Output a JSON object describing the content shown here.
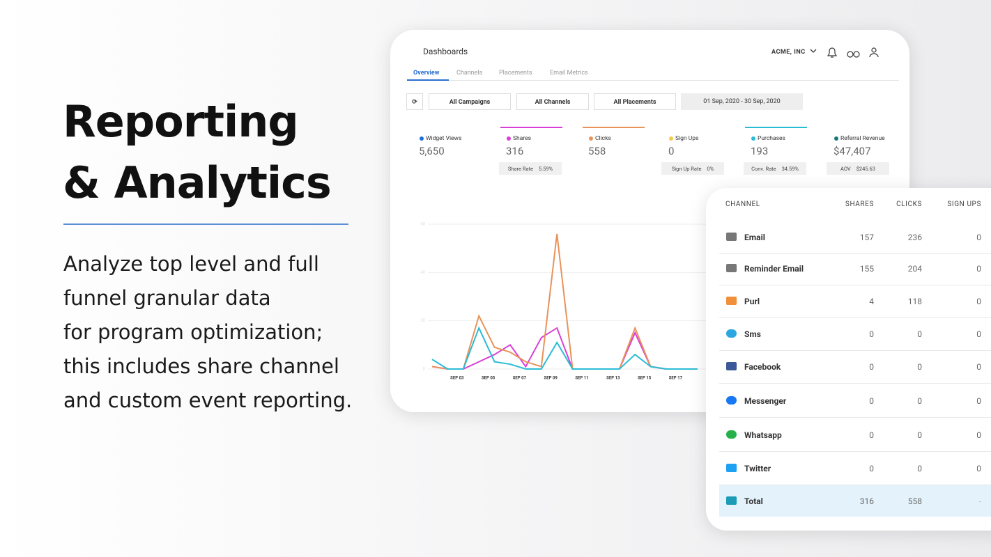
{
  "headline": {
    "line1": "Reporting",
    "line2": "& Analytics"
  },
  "description": [
    "Analyze top level and full",
    "funnel granular data",
    "for program optimization;",
    "this includes share channel",
    "and custom event reporting."
  ],
  "dashboard": {
    "title": "Dashboards",
    "account": "ACME, INC",
    "tabs": [
      "Overview",
      "Channels",
      "Placements",
      "Email Metrics"
    ],
    "filters": [
      "All Campaigns",
      "All Channels",
      "All Placements",
      "01 Sep, 2020 - 30 Sep, 2020"
    ],
    "metrics": [
      {
        "label": "Widget Views",
        "value": "5,650",
        "color": "#1f6fd6"
      },
      {
        "value": "316",
        "sub": {
          "label": "Share Rate",
          "value": "5.59%"
        }
      },
      {
        "value": "558"
      },
      {
        "label": "Sign Ups",
        "value": "0",
        "color": "#f2c94c",
        "sub": {
          "label": "Sign Up Rate",
          "value": "0%"
        }
      },
      {
        "value": "193",
        "sub": {
          "label": "Conv. Rate",
          "value": "34.59%"
        }
      },
      {
        "label": "Referral Revenue",
        "value": "$47,407",
        "color": "#17777a",
        "sub": {
          "label": "AOV",
          "value": "$245.63"
        }
      }
    ]
  },
  "chart_data": {
    "type": "line",
    "categories": [
      null,
      null,
      "SEP 03",
      null,
      "SEP 05",
      null,
      "SEP 07",
      null,
      "SEP 09",
      null,
      "SEP 11",
      null,
      "SEP 13",
      null,
      "SEP 15",
      null,
      "SEP 17",
      null
    ],
    "series": [
      {
        "name": "Shares",
        "color": "#d93fd6",
        "values": [
          1,
          0,
          0,
          3,
          6,
          10,
          1,
          13,
          17,
          0,
          0,
          0,
          0,
          15,
          1,
          0,
          0,
          0
        ]
      },
      {
        "name": "Clicks",
        "color": "#e8935a",
        "values": [
          1,
          0,
          0,
          22,
          9,
          7,
          3,
          1,
          56,
          0,
          0,
          0,
          0,
          17,
          1,
          0,
          0,
          0
        ]
      },
      {
        "name": "Purchases",
        "color": "#2bbcd4",
        "values": [
          4,
          0,
          0,
          17,
          3,
          2,
          0,
          0,
          11,
          0,
          0,
          0,
          0,
          6,
          1,
          0,
          0,
          0
        ]
      }
    ],
    "ylim": [
      0,
      60
    ],
    "yticks": [
      0,
      20,
      40,
      60
    ],
    "grid": true
  },
  "table": {
    "headers": [
      "CHANNEL",
      "SHARES",
      "CLICKS",
      "SIGN UPS"
    ],
    "rows": [
      [
        "Email",
        "157",
        "236",
        "0"
      ],
      [
        "Reminder Email",
        "155",
        "204",
        "0"
      ],
      [
        "Purl",
        "4",
        "118",
        "0"
      ],
      [
        "Sms",
        "0",
        "0",
        "0"
      ],
      [
        "Facebook",
        "0",
        "0",
        "0"
      ],
      [
        "Messenger",
        "0",
        "0",
        "0"
      ],
      [
        "Whatsapp",
        "0",
        "0",
        "0"
      ],
      [
        "Twitter",
        "0",
        "0",
        "0"
      ],
      [
        "Total",
        "316",
        "558",
        "-"
      ]
    ]
  }
}
